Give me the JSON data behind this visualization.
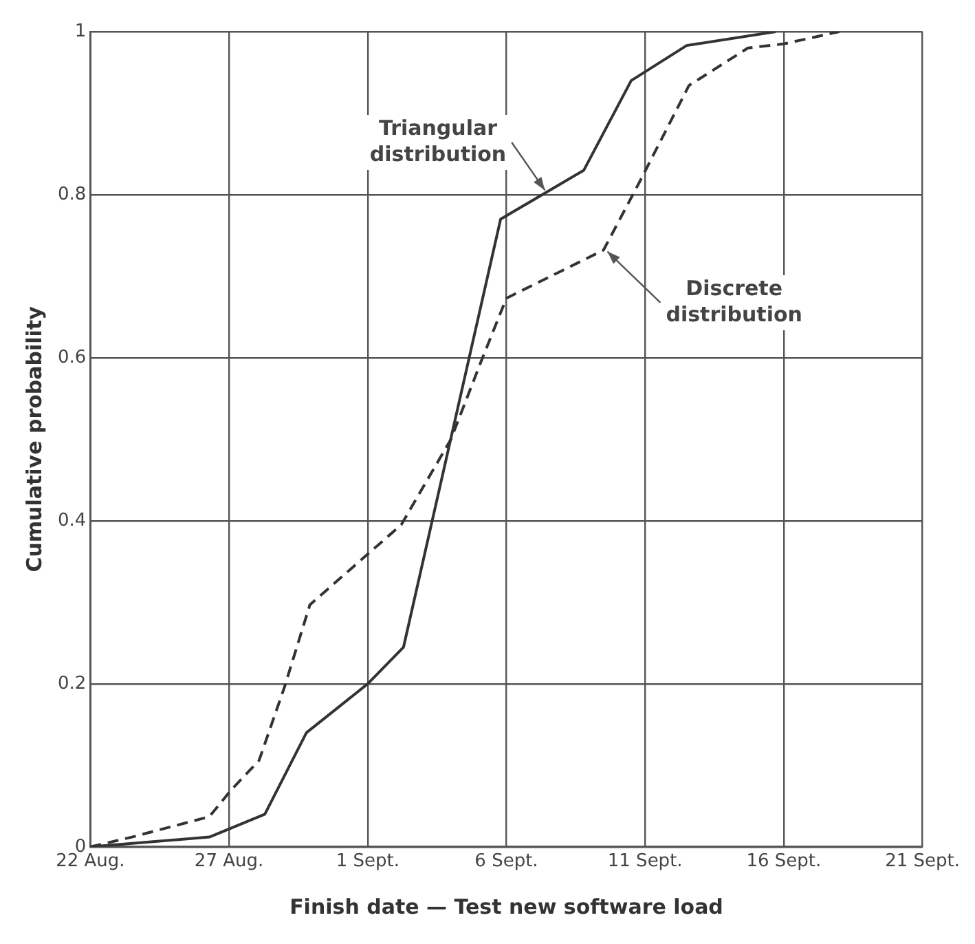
{
  "chart_data": {
    "type": "line",
    "xlabel": "Finish date — Test new software load",
    "ylabel": "Cumulative probability",
    "xlim": [
      "--08-22",
      "--09-21"
    ],
    "xticks": [
      {
        "value": "--08-22",
        "label": "22 Aug."
      },
      {
        "value": "--08-27",
        "label": "27 Aug."
      },
      {
        "value": "--09-01",
        "label": "1 Sept."
      },
      {
        "value": "--09-06",
        "label": "6 Sept."
      },
      {
        "value": "--09-11",
        "label": "11 Sept."
      },
      {
        "value": "--09-16",
        "label": "16 Sept."
      },
      {
        "value": "--09-21",
        "label": "21 Sept."
      }
    ],
    "ylim": [
      0,
      1
    ],
    "yticks": [
      0,
      0.2,
      0.4,
      0.6,
      0.8,
      1
    ],
    "grid": true,
    "legend": false,
    "marker": "none",
    "series": [
      {
        "color": "#333333",
        "line_style": "solid",
        "x": [
          "--08-22",
          "--08-26T07:00",
          "--08-28T07:00",
          "--08-29T19:00",
          "--09-01",
          "--09-02T07:00",
          "--09-05T19:00",
          "--09-08T19:00",
          "--09-10T12:00",
          "--09-12T12:00",
          "--09-15T17:00"
        ],
        "values": [
          0,
          0.012,
          0.04,
          0.14,
          0.2,
          0.245,
          0.77,
          0.83,
          0.94,
          0.983,
          1
        ]
      },
      {
        "color": "#333333",
        "line_style": "dashed",
        "x": [
          "--08-22",
          "--08-23T12:00",
          "--08-26T07:00",
          "--08-27T02:00",
          "--08-28T02:00",
          "--08-29",
          "--08-29T22:00",
          "--09-02T05:00",
          "--09-04",
          "--09-05T02:00",
          "--09-06",
          "--09-09T12:00",
          "--09-10T19:00",
          "--09-12T14:00",
          "--09-14T17:00",
          "--09-16",
          "--09-18"
        ],
        "values": [
          0,
          0.012,
          0.037,
          0.07,
          0.106,
          0.196,
          0.297,
          0.395,
          0.5,
          0.595,
          0.673,
          0.732,
          0.815,
          0.934,
          0.98,
          0.985,
          1
        ]
      }
    ],
    "annotations": [
      {
        "text": "Triangular distribution",
        "x": "--09-07T12:00",
        "y": 0.8
      },
      {
        "text": "Discrete distribution",
        "x": "--09-09T12:00",
        "y": 0.735
      }
    ]
  }
}
